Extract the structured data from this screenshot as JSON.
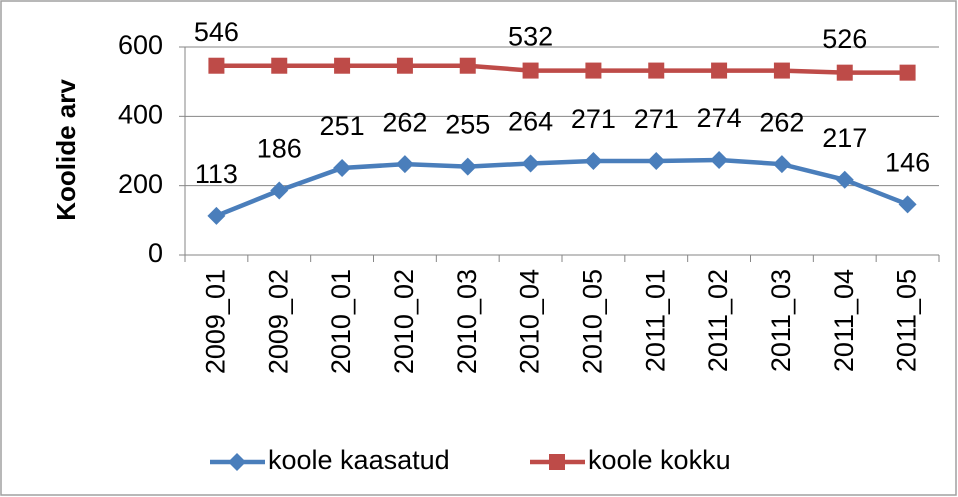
{
  "chart_data": {
    "type": "line",
    "categories": [
      "2009_01",
      "2009_02",
      "2010_01",
      "2010_02",
      "2010_03",
      "2010_04",
      "2010_05",
      "2011_01",
      "2011_02",
      "2011_03",
      "2011_04",
      "2011_05"
    ],
    "series": [
      {
        "name": "koole kaasatud",
        "color": "#4a7ebb",
        "marker": "diamond",
        "values": [
          113,
          186,
          251,
          262,
          255,
          264,
          271,
          271,
          274,
          262,
          217,
          146
        ]
      },
      {
        "name": "koole kokku",
        "color": "#be4b48",
        "marker": "square",
        "values": [
          546,
          546,
          546,
          546,
          546,
          532,
          532,
          532,
          532,
          532,
          526,
          526
        ],
        "value_labels": [
          "546",
          null,
          null,
          null,
          null,
          "532",
          null,
          null,
          null,
          null,
          "526",
          null
        ]
      }
    ],
    "ylabel": "Koolide arv",
    "ylim": [
      0,
      600
    ],
    "yticks": [
      0,
      200,
      400,
      600
    ],
    "grid": true,
    "legend": "bottom"
  }
}
